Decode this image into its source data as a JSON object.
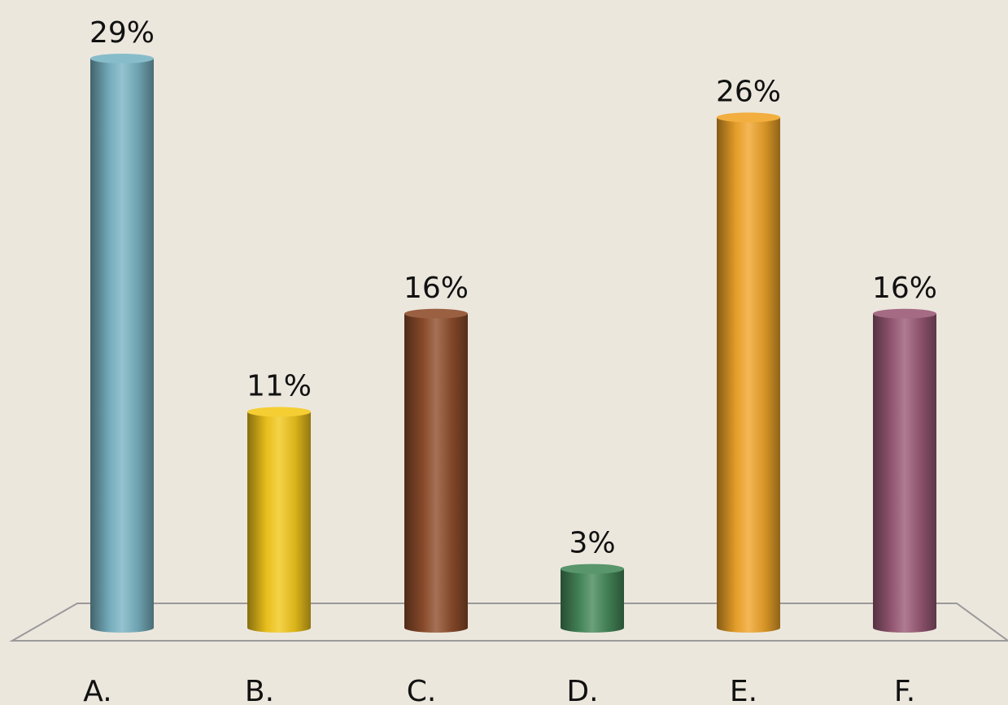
{
  "chart_data": {
    "type": "bar",
    "title": "",
    "xlabel": "",
    "ylabel": "",
    "ylim": [
      0,
      29
    ],
    "grid": false,
    "legend": "none",
    "categories": [
      "A.",
      "B.",
      "C.",
      "D.",
      "E.",
      "F."
    ],
    "values": [
      29,
      11,
      16,
      3,
      26,
      16
    ],
    "value_labels": [
      "29%",
      "11%",
      "16%",
      "3%",
      "26%",
      "16%"
    ],
    "colors": [
      "#7ab4c4",
      "#f3c81c",
      "#8f4e2c",
      "#468a5a",
      "#f0a52a",
      "#9b5a77"
    ],
    "background": "#ece7dd"
  }
}
